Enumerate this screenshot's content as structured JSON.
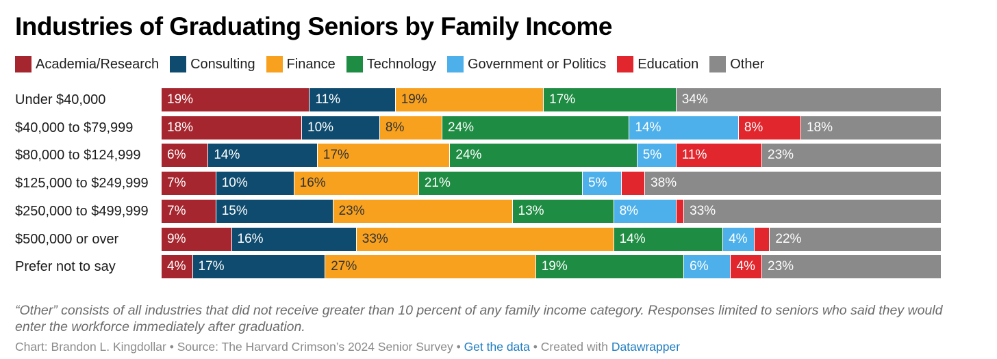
{
  "chart_data": {
    "type": "bar",
    "orientation": "horizontal",
    "stacked": true,
    "title": "Industries of Graduating Seniors by Family Income",
    "categories": [
      "Under $40,000",
      "$40,000 to $79,999",
      "$80,000 to $124,999",
      "$125,000 to $249,999",
      "$250,000 to $499,999",
      "$500,000 or over",
      "Prefer not to say"
    ],
    "series": [
      {
        "name": "Academia/Research",
        "color": "#a6262f",
        "values": [
          19,
          18,
          6,
          7,
          7,
          9,
          4
        ],
        "labels": [
          "19%",
          "18%",
          "6%",
          "7%",
          "7%",
          "9%",
          "4%"
        ]
      },
      {
        "name": "Consulting",
        "color": "#0f4b6e",
        "values": [
          11,
          10,
          14,
          10,
          15,
          16,
          17
        ],
        "labels": [
          "11%",
          "10%",
          "14%",
          "10%",
          "15%",
          "16%",
          "17%"
        ]
      },
      {
        "name": "Finance",
        "color": "#f7a11f",
        "values": [
          19,
          8,
          17,
          16,
          23,
          33,
          27
        ],
        "labels": [
          "19%",
          "8%",
          "17%",
          "16%",
          "23%",
          "33%",
          "27%"
        ]
      },
      {
        "name": "Technology",
        "color": "#1f8c43",
        "values": [
          17,
          24,
          24,
          21,
          13,
          14,
          19
        ],
        "labels": [
          "17%",
          "24%",
          "24%",
          "21%",
          "13%",
          "14%",
          "19%"
        ]
      },
      {
        "name": "Government or Politics",
        "color": "#4eb0ea",
        "values": [
          0,
          14,
          5,
          5,
          8,
          4,
          6
        ],
        "labels": [
          "",
          "14%",
          "5%",
          "5%",
          "8%",
          "4%",
          "6%"
        ]
      },
      {
        "name": "Education",
        "color": "#e1262d",
        "values": [
          0,
          8,
          11,
          3,
          1,
          2,
          4
        ],
        "labels": [
          "",
          "8%",
          "11%",
          "",
          "",
          "",
          "4%"
        ]
      },
      {
        "name": "Other",
        "color": "#8a8a8a",
        "values": [
          34,
          18,
          23,
          38,
          33,
          22,
          23
        ],
        "labels": [
          "34%",
          "18%",
          "23%",
          "38%",
          "33%",
          "22%",
          "23%"
        ]
      }
    ],
    "xlim": [
      0,
      100
    ],
    "legend": "top-left",
    "note": "“Other” consists of all industries that did not receive greater than 10 percent of any family income category. Responses limited to seniors who said they would enter the workforce immediately after graduation."
  },
  "footer": {
    "chart_by": "Chart: Brandon L. Kingdollar",
    "sep1": " • ",
    "source": "Source: The Harvard Crimson’s 2024 Senior Survey",
    "sep2": " • ",
    "get_data": "Get the data",
    "sep3": " • ",
    "created_with": "Created with ",
    "datawrapper": "Datawrapper"
  }
}
